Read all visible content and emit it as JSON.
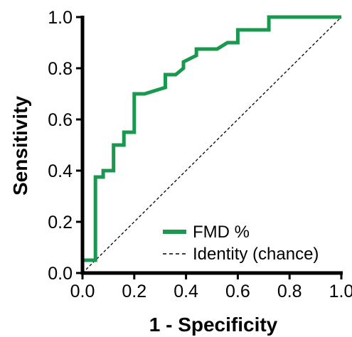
{
  "chart_data": {
    "type": "line",
    "xlabel": "1 - Specificity",
    "ylabel": "Sensitivity",
    "xlim": [
      0,
      1
    ],
    "ylim": [
      0,
      1
    ],
    "xticks": [
      "0.0",
      "0.2",
      "0.4",
      "0.6",
      "0.8",
      "1.0"
    ],
    "yticks": [
      "0.0",
      "0.2",
      "0.4",
      "0.6",
      "0.8",
      "1.0"
    ],
    "grid": false,
    "legend_position": "bottom-right",
    "series": [
      {
        "name": "FMD %",
        "style": "solid",
        "color": "#1a9850",
        "x": [
          0.0,
          0.0,
          0.05,
          0.05,
          0.08,
          0.08,
          0.12,
          0.12,
          0.16,
          0.16,
          0.2,
          0.2,
          0.24,
          0.32,
          0.32,
          0.36,
          0.39,
          0.39,
          0.44,
          0.44,
          0.52,
          0.56,
          0.56,
          0.6,
          0.6,
          0.72,
          0.72,
          1.0
        ],
        "y": [
          0.0,
          0.05,
          0.05,
          0.375,
          0.375,
          0.4,
          0.4,
          0.5,
          0.5,
          0.55,
          0.55,
          0.7,
          0.7,
          0.725,
          0.775,
          0.775,
          0.8,
          0.825,
          0.85,
          0.875,
          0.875,
          0.9,
          0.9,
          0.9,
          0.95,
          0.95,
          1.0,
          1.0
        ]
      },
      {
        "name": "Identity (chance)",
        "style": "dashed",
        "color": "#000000",
        "x": [
          0,
          1
        ],
        "y": [
          0,
          1
        ]
      }
    ]
  }
}
